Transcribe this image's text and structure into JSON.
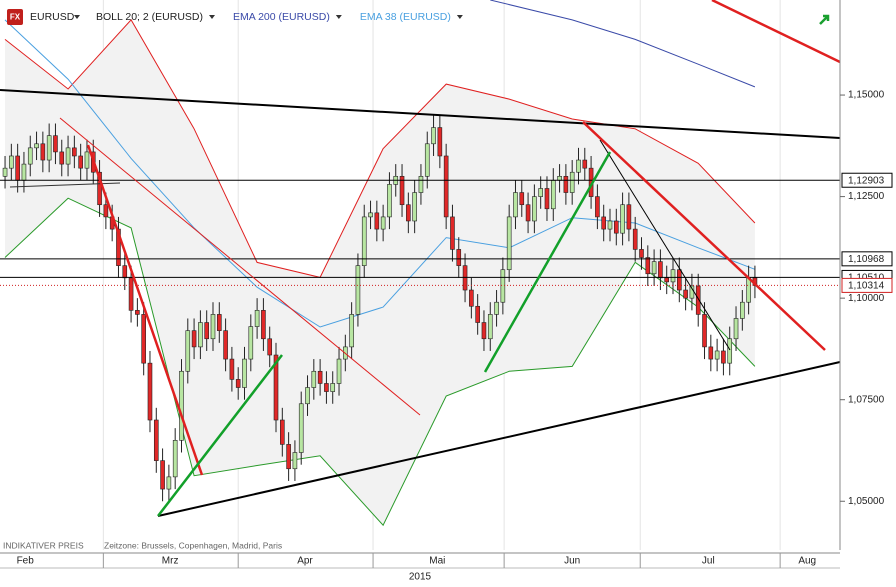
{
  "chart_data": {
    "type": "candlestick",
    "icon_text": "FX",
    "title": "EURUSD",
    "xlim": [
      -0.8,
      132.5
    ],
    "ylim": [
      1.038,
      1.1734
    ],
    "yticks": [
      {
        "value": 1.05,
        "label": "1,05000"
      },
      {
        "value": 1.075,
        "label": "1,07500"
      },
      {
        "value": 1.1,
        "label": "1,10000"
      },
      {
        "value": 1.125,
        "label": "1,12500"
      },
      {
        "value": 1.15,
        "label": "1,15000"
      }
    ],
    "xticks": [
      {
        "value": 3.2,
        "label": "Feb"
      },
      {
        "value": 26.2,
        "label": "Mrz"
      },
      {
        "value": 47.6,
        "label": "Apr"
      },
      {
        "value": 68.6,
        "label": "Mai"
      },
      {
        "value": 90.0,
        "label": "Jun"
      },
      {
        "value": 111.6,
        "label": "Jul"
      },
      {
        "value": 127.3,
        "label": "Aug"
      }
    ],
    "month_separators": [
      15.6,
      37.0,
      58.4,
      79.2,
      100.8,
      123.0
    ],
    "year": "2015",
    "footer": [
      "INDIKATIVER PREIS",
      "Zeitzone: Brussels, Copenhagen, Madrid, Paris"
    ],
    "up_color": "#b8e6a2",
    "down_color": "#e02828",
    "price_levels": [
      {
        "value": 1.12903,
        "label": "1,12903",
        "color": "#000000",
        "dotted": false
      },
      {
        "value": 1.1051,
        "label": "1,10510",
        "color": "#000000",
        "dotted": false
      },
      {
        "value": 1.10968,
        "label": "1,10968",
        "color": "#000000",
        "dotted": false
      },
      {
        "value": 1.10314,
        "label": "1,10314",
        "color": "#d02020",
        "dotted": true
      }
    ],
    "open": [
      1.13,
      1.132,
      1.135,
      1.129,
      1.133,
      1.137,
      1.138,
      1.134,
      1.14,
      1.136,
      1.133,
      1.137,
      1.135,
      1.132,
      1.136,
      1.131,
      1.123,
      1.12,
      1.117,
      1.108,
      1.105,
      1.097,
      1.096,
      1.084,
      1.07,
      1.06,
      1.053,
      1.056,
      1.065,
      1.082,
      1.092,
      1.088,
      1.094,
      1.09,
      1.096,
      1.092,
      1.085,
      1.08,
      1.078,
      1.085,
      1.093,
      1.097,
      1.09,
      1.086,
      1.07,
      1.064,
      1.058,
      1.062,
      1.074,
      1.078,
      1.082,
      1.079,
      1.077,
      1.079,
      1.085,
      1.088,
      1.096,
      1.108,
      1.12,
      1.121,
      1.117,
      1.12,
      1.128,
      1.13,
      1.123,
      1.119,
      1.126,
      1.13,
      1.138,
      1.142,
      1.135,
      1.12,
      1.112,
      1.108,
      1.102,
      1.098,
      1.094,
      1.09,
      1.096,
      1.099,
      1.107,
      1.12,
      1.126,
      1.123,
      1.119,
      1.125,
      1.127,
      1.122,
      1.129,
      1.13,
      1.126,
      1.131,
      1.134,
      1.132,
      1.125,
      1.12,
      1.117,
      1.119,
      1.116,
      1.123,
      1.117,
      1.112,
      1.11,
      1.106,
      1.109,
      1.105,
      1.104,
      1.107,
      1.102,
      1.1,
      1.103,
      1.096,
      1.088,
      1.085,
      1.087,
      1.084,
      1.09,
      1.095,
      1.099,
      1.105
    ],
    "high": [
      1.135,
      1.138,
      1.138,
      1.136,
      1.14,
      1.141,
      1.141,
      1.143,
      1.143,
      1.139,
      1.14,
      1.14,
      1.138,
      1.139,
      1.139,
      1.134,
      1.126,
      1.123,
      1.12,
      1.111,
      1.108,
      1.1,
      1.099,
      1.087,
      1.073,
      1.063,
      1.059,
      1.068,
      1.085,
      1.095,
      1.095,
      1.097,
      1.097,
      1.099,
      1.099,
      1.095,
      1.088,
      1.083,
      1.088,
      1.096,
      1.1,
      1.1,
      1.093,
      1.089,
      1.073,
      1.067,
      1.065,
      1.077,
      1.081,
      1.085,
      1.085,
      1.082,
      1.082,
      1.088,
      1.091,
      1.099,
      1.111,
      1.123,
      1.124,
      1.124,
      1.123,
      1.131,
      1.133,
      1.133,
      1.126,
      1.129,
      1.133,
      1.141,
      1.145,
      1.145,
      1.138,
      1.123,
      1.115,
      1.111,
      1.105,
      1.101,
      1.097,
      1.099,
      1.102,
      1.11,
      1.123,
      1.129,
      1.129,
      1.126,
      1.128,
      1.13,
      1.13,
      1.132,
      1.133,
      1.133,
      1.134,
      1.137,
      1.137,
      1.135,
      1.128,
      1.123,
      1.122,
      1.122,
      1.126,
      1.126,
      1.12,
      1.115,
      1.113,
      1.112,
      1.112,
      1.108,
      1.11,
      1.11,
      1.105,
      1.106,
      1.106,
      1.099,
      1.091,
      1.09,
      1.09,
      1.093,
      1.098,
      1.102,
      1.108,
      1.108
    ],
    "low": [
      1.127,
      1.129,
      1.126,
      1.126,
      1.13,
      1.134,
      1.131,
      1.131,
      1.133,
      1.13,
      1.13,
      1.132,
      1.129,
      1.129,
      1.128,
      1.12,
      1.117,
      1.114,
      1.105,
      1.102,
      1.094,
      1.093,
      1.081,
      1.067,
      1.057,
      1.05,
      1.05,
      1.053,
      1.062,
      1.079,
      1.085,
      1.085,
      1.087,
      1.087,
      1.089,
      1.082,
      1.077,
      1.075,
      1.075,
      1.082,
      1.09,
      1.087,
      1.083,
      1.067,
      1.061,
      1.055,
      1.055,
      1.059,
      1.071,
      1.075,
      1.076,
      1.074,
      1.074,
      1.076,
      1.082,
      1.085,
      1.093,
      1.105,
      1.117,
      1.114,
      1.114,
      1.117,
      1.125,
      1.12,
      1.116,
      1.116,
      1.123,
      1.127,
      1.135,
      1.132,
      1.117,
      1.109,
      1.105,
      1.099,
      1.095,
      1.091,
      1.087,
      1.087,
      1.093,
      1.096,
      1.104,
      1.117,
      1.12,
      1.116,
      1.116,
      1.122,
      1.119,
      1.119,
      1.126,
      1.123,
      1.123,
      1.128,
      1.129,
      1.122,
      1.117,
      1.114,
      1.114,
      1.113,
      1.113,
      1.114,
      1.109,
      1.107,
      1.103,
      1.103,
      1.102,
      1.101,
      1.101,
      1.099,
      1.097,
      1.097,
      1.093,
      1.085,
      1.082,
      1.082,
      1.081,
      1.081,
      1.087,
      1.092,
      1.096,
      1.1
    ],
    "close": [
      1.132,
      1.135,
      1.129,
      1.133,
      1.137,
      1.138,
      1.134,
      1.14,
      1.136,
      1.133,
      1.137,
      1.135,
      1.132,
      1.136,
      1.131,
      1.123,
      1.12,
      1.117,
      1.108,
      1.105,
      1.097,
      1.096,
      1.084,
      1.07,
      1.06,
      1.053,
      1.056,
      1.065,
      1.082,
      1.092,
      1.088,
      1.094,
      1.09,
      1.096,
      1.092,
      1.085,
      1.08,
      1.078,
      1.085,
      1.093,
      1.097,
      1.09,
      1.086,
      1.07,
      1.064,
      1.058,
      1.062,
      1.074,
      1.078,
      1.082,
      1.079,
      1.077,
      1.079,
      1.085,
      1.088,
      1.096,
      1.108,
      1.12,
      1.121,
      1.117,
      1.12,
      1.128,
      1.13,
      1.123,
      1.119,
      1.126,
      1.13,
      1.138,
      1.142,
      1.135,
      1.12,
      1.112,
      1.108,
      1.102,
      1.098,
      1.094,
      1.09,
      1.096,
      1.099,
      1.107,
      1.12,
      1.126,
      1.123,
      1.119,
      1.125,
      1.127,
      1.122,
      1.129,
      1.13,
      1.126,
      1.131,
      1.134,
      1.132,
      1.125,
      1.12,
      1.117,
      1.119,
      1.116,
      1.123,
      1.117,
      1.112,
      1.11,
      1.106,
      1.109,
      1.105,
      1.104,
      1.107,
      1.102,
      1.1,
      1.103,
      1.096,
      1.088,
      1.085,
      1.087,
      1.084,
      1.09,
      1.095,
      1.099,
      1.105,
      1.1031
    ],
    "indicators": [
      {
        "label": "BOLL 20; 2 (EURUSD)",
        "label_color": "#222222",
        "color": "#e02020",
        "lower_color": "#2a9a2a",
        "x": [
          0,
          10,
          20,
          30,
          40,
          50,
          60,
          70,
          80,
          90,
          100,
          110,
          119
        ],
        "upper": [
          1.1637,
          1.1515,
          1.1685,
          1.1417,
          1.1088,
          1.1051,
          1.1368,
          1.1527,
          1.149,
          1.1441,
          1.1417,
          1.1332,
          1.1185
        ],
        "lower": [
          1.11,
          1.1246,
          1.1173,
          1.0563,
          1.0588,
          1.0612,
          1.0441,
          1.0759,
          1.082,
          1.0832,
          1.1088,
          1.0978,
          1.0832
        ]
      },
      {
        "label": "EMA 200 (EURUSD)",
        "label_color": "#3a4aa8",
        "color": "#3a4aa8",
        "x": [
          77,
          90,
          100,
          110,
          119
        ],
        "values": [
          1.1734,
          1.1685,
          1.1637,
          1.1576,
          1.152
        ]
      },
      {
        "label": "EMA 38 (EURUSD)",
        "label_color": "#4aa0e0",
        "color": "#4aa0e0",
        "x": [
          0,
          10,
          20,
          30,
          40,
          50,
          60,
          70,
          80,
          90,
          100,
          110,
          119
        ],
        "values": [
          1.1685,
          1.1539,
          1.1344,
          1.1173,
          1.1027,
          1.0929,
          1.0978,
          1.1149,
          1.1124,
          1.1198,
          1.1185,
          1.1124,
          1.1071
        ]
      }
    ]
  }
}
